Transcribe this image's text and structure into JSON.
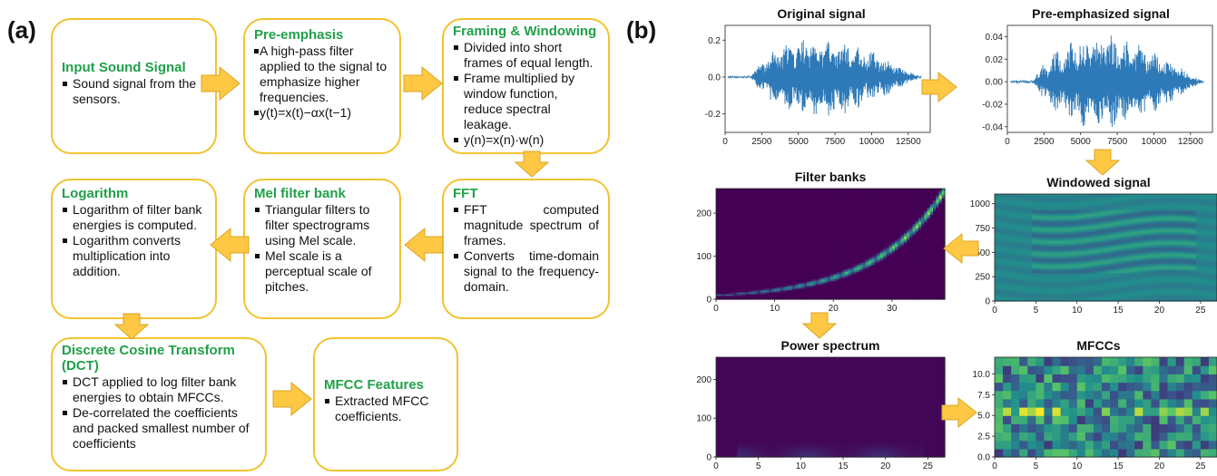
{
  "panel_a": {
    "label": "(a)",
    "boxes": {
      "input": {
        "title": "Input Sound Signal",
        "bullets": [
          "Sound signal from the sensors."
        ]
      },
      "preemph": {
        "title": "Pre-emphasis",
        "bullets": [
          "A high-pass filter applied to the signal to emphasize higher frequencies.",
          "y(t)=x(t)−αx(t−1)"
        ]
      },
      "framing": {
        "title": "Framing & Windowing",
        "bullets": [
          "Divided into short frames of equal length.",
          "Frame multiplied by window function, reduce spectral leakage.",
          "y(n)=x(n)·w(n)"
        ]
      },
      "fft": {
        "title": "FFT",
        "bullets": [
          "FFT computed magnitude spectrum of frames.",
          "Converts time-domain signal to the frequency-domain."
        ]
      },
      "mel": {
        "title": "Mel filter bank",
        "bullets": [
          "Triangular filters to filter spectrograms using Mel scale.",
          "Mel scale is a perceptual scale of pitches."
        ]
      },
      "log": {
        "title": "Logarithm",
        "bullets": [
          "Logarithm of filter bank energies is computed.",
          "Logarithm converts multiplication into addition."
        ]
      },
      "dct": {
        "title": "Discrete Cosine Transform (DCT)",
        "bullets": [
          "DCT applied to log filter bank energies to obtain MFCCs.",
          "De-correlated the coefficients and packed smallest number of coefficients"
        ]
      },
      "mfcc": {
        "title": "MFCC Features",
        "bullets": [
          "Extracted MFCC coefficients."
        ]
      }
    }
  },
  "panel_b": {
    "label": "(b)"
  },
  "colors": {
    "box_border": "#f2c230",
    "arrow_fill": "#ffc844",
    "title_green": "#21a04a",
    "signal_blue": "#2e7ab8",
    "viridis_dark": "#440154"
  },
  "chart_data": [
    {
      "type": "line",
      "title": "Original signal",
      "xticks": [
        "0",
        "2500",
        "5000",
        "7500",
        "10000",
        "12500"
      ],
      "yticks": [
        "0.2",
        "0.0",
        "-0.2"
      ],
      "xlim": [
        0,
        14000
      ],
      "ylim": [
        -0.3,
        0.28
      ]
    },
    {
      "type": "line",
      "title": "Pre-emphasized signal",
      "xticks": [
        "0",
        "2500",
        "5000",
        "7500",
        "10000",
        "12500"
      ],
      "yticks": [
        "0.04",
        "0.02",
        "0.00",
        "-0.02",
        "-0.04"
      ],
      "xlim": [
        0,
        14000
      ],
      "ylim": [
        -0.045,
        0.05
      ]
    },
    {
      "type": "heatmap",
      "title": "Filter banks",
      "xticks": [
        "0",
        "10",
        "20",
        "30"
      ],
      "yticks": [
        "200",
        "100",
        "0"
      ],
      "xlim": [
        0,
        39
      ],
      "ylim": [
        0,
        257
      ]
    },
    {
      "type": "heatmap",
      "title": "Windowed signal",
      "xticks": [
        "0",
        "5",
        "10",
        "15",
        "20",
        "25"
      ],
      "yticks": [
        "1000",
        "750",
        "500",
        "250",
        "0"
      ],
      "xlim": [
        0,
        27
      ],
      "ylim": [
        0,
        1100
      ]
    },
    {
      "type": "heatmap",
      "title": "Power spectrum",
      "xticks": [
        "0",
        "5",
        "10",
        "15",
        "20",
        "25"
      ],
      "yticks": [
        "200",
        "100",
        "0"
      ],
      "xlim": [
        0,
        27
      ],
      "ylim": [
        0,
        257
      ]
    },
    {
      "type": "heatmap",
      "title": "MFCCs",
      "xticks": [
        "0",
        "5",
        "10",
        "15",
        "20",
        "25"
      ],
      "yticks": [
        "10.0",
        "7.5",
        "5.0",
        "2.5",
        "0.0"
      ],
      "xlim": [
        0,
        27
      ],
      "ylim": [
        0,
        12
      ]
    }
  ]
}
